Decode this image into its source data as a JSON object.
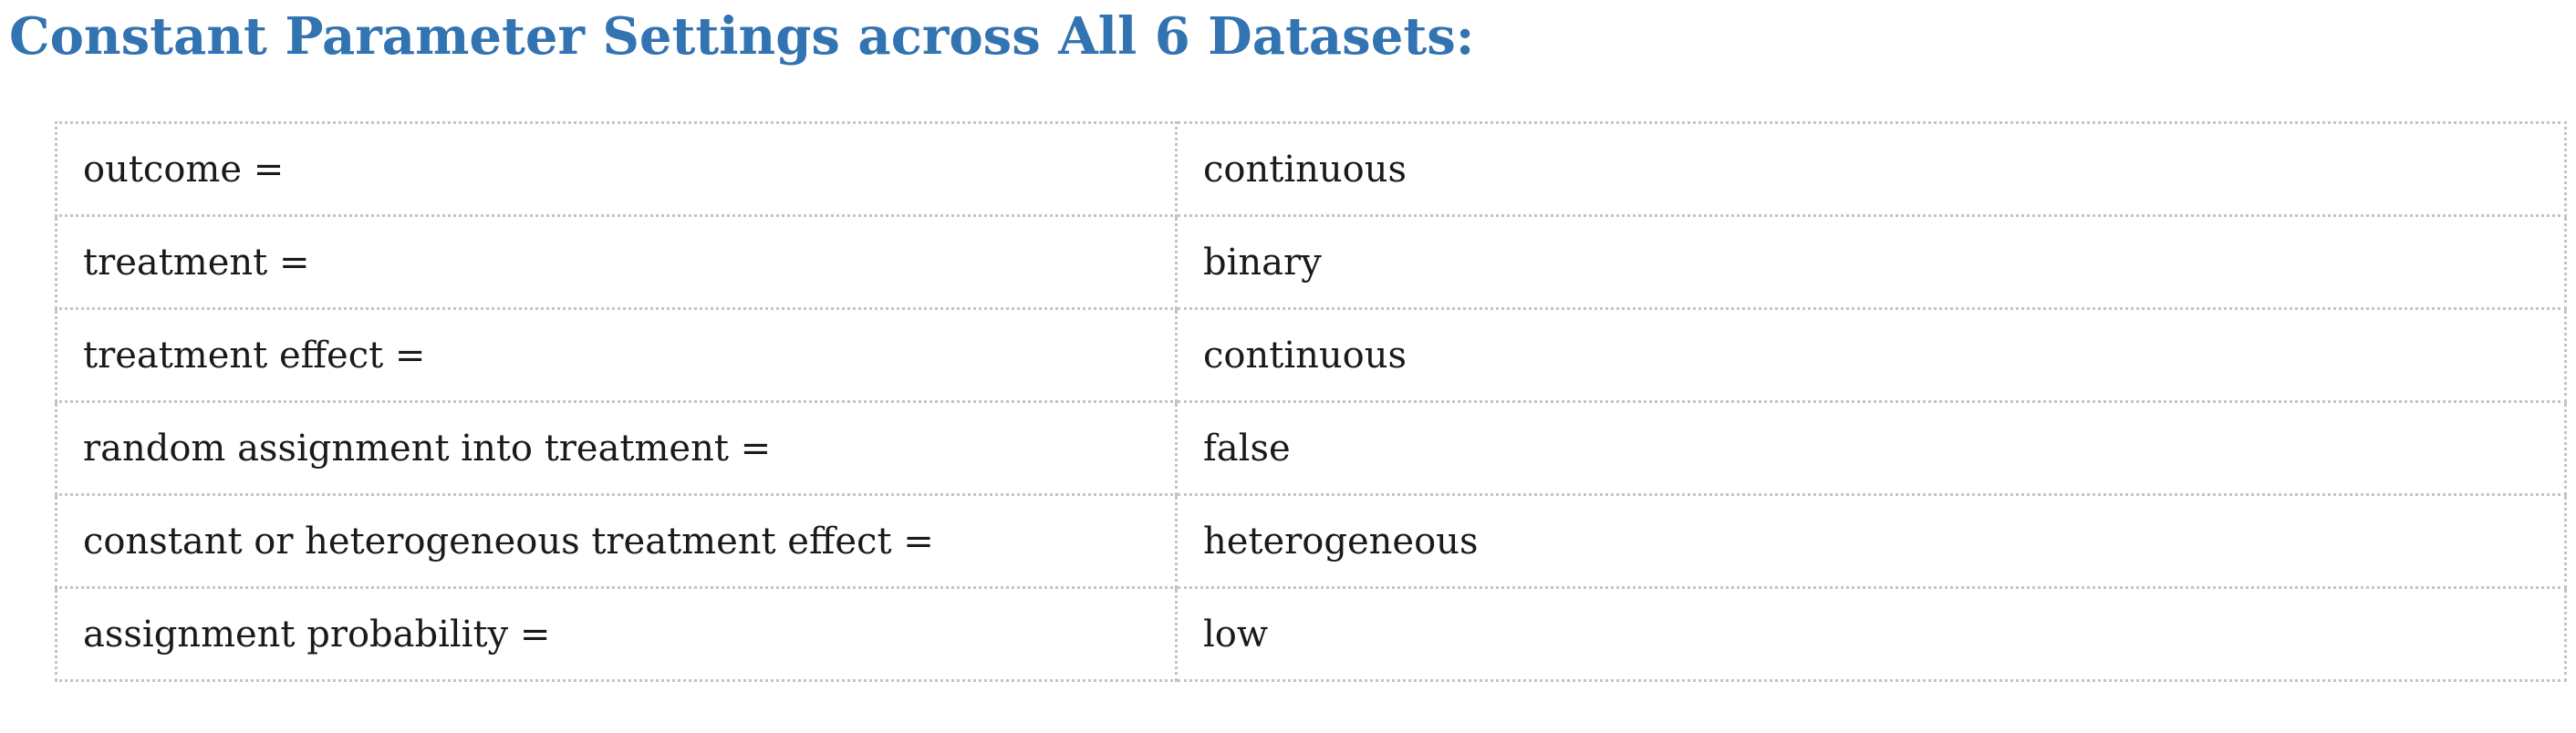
{
  "page": {
    "title": "Constant Parameter Settings across All 6 Datasets:"
  },
  "colors": {
    "title": "#3273b2",
    "text": "#1a1a1a",
    "border": "#c4c4c4"
  },
  "settings": {
    "rows": [
      {
        "label": "outcome =",
        "value": "continuous"
      },
      {
        "label": "treatment =",
        "value": "binary"
      },
      {
        "label": "treatment effect =",
        "value": "continuous"
      },
      {
        "label": "random assignment into treatment =",
        "value": "false"
      },
      {
        "label": "constant or heterogeneous treatment effect =",
        "value": "heterogeneous"
      },
      {
        "label": "assignment probability =",
        "value": "low"
      }
    ]
  }
}
